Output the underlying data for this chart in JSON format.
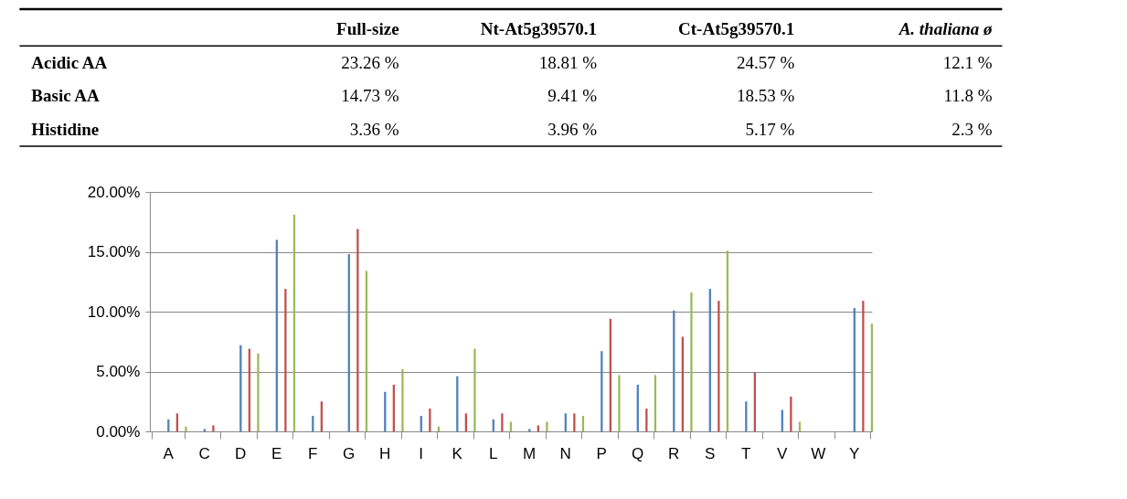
{
  "chart_data": [
    {
      "type": "other",
      "categories": [
        "Full-size",
        "Nt-At5g39570.1",
        "Ct-At5g39570.1",
        "A. thaliana ø"
      ],
      "y_categories": [
        "Acidic AA",
        "Basic AA",
        "Histidine"
      ],
      "cell_labels": [
        [
          "23.26 %",
          "18.81 %",
          "24.57 %",
          "12.1 %"
        ],
        [
          "14.73 %",
          "9.41 %",
          "18.53 %",
          "11.8 %"
        ],
        [
          "3.36 %",
          "3.96 %",
          "5.17 %",
          "2.3 %"
        ]
      ]
    },
    {
      "type": "bar",
      "categories": [
        "A",
        "C",
        "D",
        "E",
        "F",
        "G",
        "H",
        "I",
        "K",
        "L",
        "M",
        "N",
        "P",
        "Q",
        "R",
        "S",
        "T",
        "V",
        "W",
        "Y"
      ],
      "series": [
        {
          "color": "#4f81bd",
          "values": [
            1.0,
            0.2,
            7.2,
            16.0,
            1.3,
            14.8,
            3.3,
            1.3,
            4.6,
            1.0,
            0.2,
            1.5,
            6.7,
            3.9,
            10.1,
            11.9,
            2.5,
            1.8,
            0,
            10.3
          ]
        },
        {
          "color": "#c0504d",
          "values": [
            1.5,
            0.5,
            6.9,
            11.9,
            2.5,
            16.9,
            3.9,
            1.9,
            1.5,
            1.5,
            0.5,
            1.5,
            9.4,
            1.9,
            7.9,
            10.9,
            4.9,
            2.9,
            0,
            10.9
          ]
        },
        {
          "color": "#9bbb59",
          "values": [
            0.4,
            0,
            6.5,
            18.1,
            0,
            13.4,
            5.2,
            0.4,
            6.9,
            0.8,
            0.8,
            1.3,
            4.7,
            4.7,
            11.6,
            15.1,
            0,
            0.8,
            0,
            9.0
          ]
        }
      ],
      "ylim": [
        0,
        20
      ],
      "yticks": [
        {
          "value": 0,
          "label": "0.00%"
        },
        {
          "value": 5,
          "label": "5.00%"
        },
        {
          "value": 10,
          "label": "10.00%"
        },
        {
          "value": 15,
          "label": "15.00%"
        },
        {
          "value": 20,
          "label": "20.00%"
        }
      ],
      "grid": "y"
    }
  ]
}
